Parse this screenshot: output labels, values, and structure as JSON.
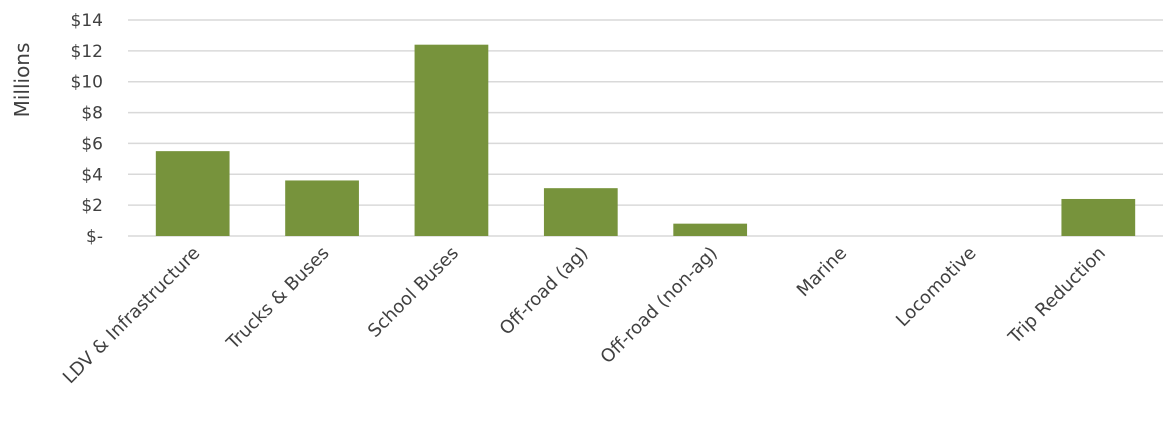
{
  "chart_data": {
    "type": "bar",
    "title": "",
    "xlabel": "",
    "ylabel": "Millions",
    "categories": [
      "LDV & Infrastructure",
      "Trucks & Buses",
      "School Buses",
      "Off-road (ag)",
      "Off-road (non-ag)",
      "Marine",
      "Locomotive",
      "Trip Reduction"
    ],
    "values": [
      5.5,
      3.6,
      12.4,
      3.1,
      0.8,
      0,
      0,
      2.4
    ],
    "ylim": [
      0,
      14
    ],
    "yticks": [
      0,
      2,
      4,
      6,
      8,
      10,
      12,
      14
    ],
    "ytick_labels": [
      "$-",
      "$2",
      "$4",
      "$6",
      "$8",
      "$10",
      "$12",
      "$14"
    ],
    "grid": true,
    "legend": "none",
    "bar_color": "#77933c"
  }
}
